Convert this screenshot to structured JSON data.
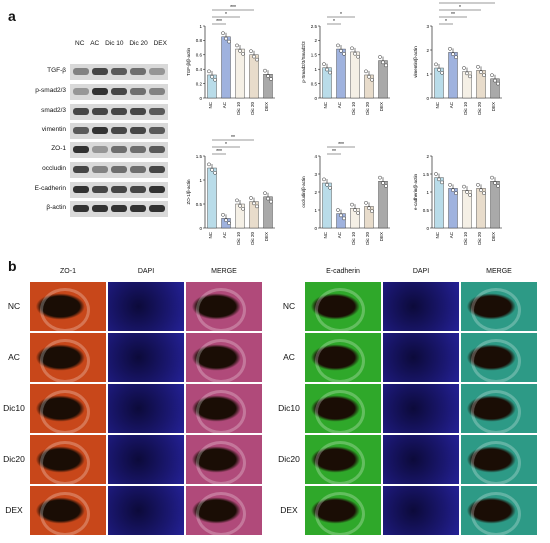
{
  "panel_a": {
    "letter": "a",
    "lanes": [
      "NC",
      "AC",
      "Dic 10",
      "Dic 20",
      "DEX"
    ],
    "proteins": [
      "TGF-β",
      "p-smad2/3",
      "smad2/3",
      "vimentin",
      "ZO-1",
      "occludin",
      "E-cadherin",
      "β-actin"
    ]
  },
  "panel_b": {
    "letter": "b",
    "left_columns": [
      "ZO-1",
      "DAPI",
      "MERGE"
    ],
    "right_columns": [
      "E-cadherin",
      "DAPI",
      "MERGE"
    ],
    "rows": [
      "NC",
      "AC",
      "Dic10",
      "Dic20",
      "DEX"
    ],
    "colors": {
      "zo1": "#c8471a",
      "dapi": "#1c1a8a",
      "merge_zo1": "#b04a7a",
      "ecad": "#2fa82a",
      "merge_ecad": "#2d9a86"
    }
  },
  "chart_data": [
    {
      "type": "bar",
      "ylabel": "TGF-β/β-actin",
      "categories": [
        "NC",
        "AC",
        "Dic 10",
        "Dic 20",
        "DEX"
      ],
      "values": [
        0.32,
        0.85,
        0.68,
        0.6,
        0.33
      ],
      "ylim": [
        0,
        1.0
      ],
      "yticks": [
        0,
        0.2,
        0.4,
        0.6,
        0.8,
        1.0
      ],
      "significance": [
        "***",
        "*",
        "***"
      ],
      "colors": [
        "#b9dce9",
        "#9fb2de",
        "#f5f0e6",
        "#e8dccb",
        "#a9a9a9"
      ]
    },
    {
      "type": "bar",
      "ylabel": "p-Smad2/3/Smad2/3",
      "categories": [
        "NC",
        "AC",
        "Dic 10",
        "Dic 20",
        "DEX"
      ],
      "values": [
        1.05,
        1.7,
        1.6,
        0.8,
        1.3
      ],
      "ylim": [
        0,
        2.5
      ],
      "yticks": [
        0,
        0.5,
        1.0,
        1.5,
        2.0,
        2.5
      ],
      "significance": [
        "*",
        "*"
      ],
      "colors": [
        "#b9dce9",
        "#9fb2de",
        "#f5f0e6",
        "#e8dccb",
        "#a9a9a9"
      ]
    },
    {
      "type": "bar",
      "ylabel": "vimentin/β-actin",
      "categories": [
        "NC",
        "AC",
        "Dic 10",
        "Dic 20",
        "DEX"
      ],
      "values": [
        1.25,
        1.9,
        1.1,
        1.15,
        0.8
      ],
      "ylim": [
        0,
        3
      ],
      "yticks": [
        0,
        1,
        2,
        3
      ],
      "significance": [
        "*",
        "**",
        "*",
        "**"
      ],
      "colors": [
        "#b9dce9",
        "#9fb2de",
        "#f5f0e6",
        "#e8dccb",
        "#a9a9a9"
      ]
    },
    {
      "type": "bar",
      "ylabel": "ZO-1/β-actin",
      "categories": [
        "NC",
        "AC",
        "Dic 10",
        "Dic 20",
        "DEX"
      ],
      "values": [
        1.25,
        0.2,
        0.5,
        0.55,
        0.65
      ],
      "ylim": [
        0,
        1.5
      ],
      "yticks": [
        0,
        0.5,
        1.0,
        1.5
      ],
      "significance": [
        "***",
        "*",
        "**"
      ],
      "colors": [
        "#b9dce9",
        "#9fb2de",
        "#f5f0e6",
        "#e8dccb",
        "#a9a9a9"
      ]
    },
    {
      "type": "bar",
      "ylabel": "occludin/β-actin",
      "categories": [
        "NC",
        "AC",
        "Dic 10",
        "Dic 20",
        "DEX"
      ],
      "values": [
        2.5,
        0.8,
        1.1,
        1.2,
        2.6
      ],
      "ylim": [
        0,
        4
      ],
      "yticks": [
        0,
        1,
        2,
        3,
        4
      ],
      "significance": [
        "**",
        "***"
      ],
      "colors": [
        "#b9dce9",
        "#9fb2de",
        "#f5f0e6",
        "#e8dccb",
        "#a9a9a9"
      ]
    },
    {
      "type": "bar",
      "ylabel": "e-cadherin/β-actin",
      "categories": [
        "NC",
        "AC",
        "Dic 10",
        "Dic 20",
        "DEX"
      ],
      "values": [
        1.4,
        1.1,
        1.05,
        1.1,
        1.3
      ],
      "ylim": [
        0,
        2.0
      ],
      "yticks": [
        0,
        0.5,
        1.0,
        1.5,
        2.0
      ],
      "significance": [],
      "colors": [
        "#b9dce9",
        "#9fb2de",
        "#f5f0e6",
        "#e8dccb",
        "#a9a9a9"
      ]
    }
  ]
}
